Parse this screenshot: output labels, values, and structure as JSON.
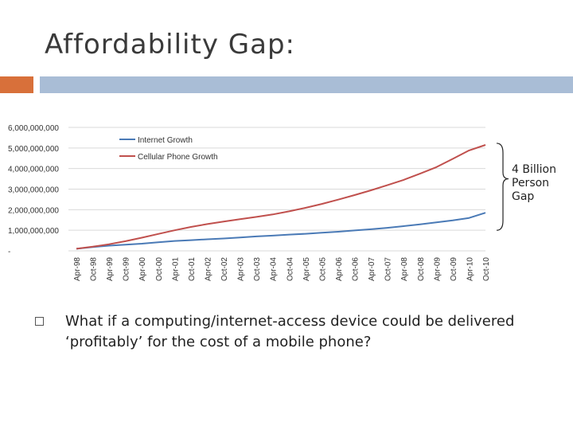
{
  "slide": {
    "title": "Affordability Gap:",
    "gap_label_lines": [
      "4 Billion",
      "Person",
      "Gap"
    ],
    "question": "What if a computing/internet-access device could be delivered ‘profitably’ for the cost of a mobile phone?",
    "colors": {
      "accent_left": "#d8703a",
      "accent_right": "#a9bdd6",
      "internet_line": "#4a7ab6",
      "cellular_line": "#c0504d"
    }
  },
  "chart_data": {
    "type": "line",
    "title": "",
    "xlabel": "",
    "ylabel": "",
    "ylim": [
      0,
      6000000000
    ],
    "y_ticks": [
      "6,000,000,000",
      "5,000,000,000",
      "4,000,000,000",
      "3,000,000,000",
      "2,000,000,000",
      "1,000,000,000",
      "-"
    ],
    "y_tick_values": [
      6000000000,
      5000000000,
      4000000000,
      3000000000,
      2000000000,
      1000000000,
      0
    ],
    "x": [
      "Apr-98",
      "Oct-98",
      "Apr-99",
      "Oct-99",
      "Apr-00",
      "Oct-00",
      "Apr-01",
      "Oct-01",
      "Apr-02",
      "Oct-02",
      "Apr-03",
      "Oct-03",
      "Apr-04",
      "Oct-04",
      "Apr-05",
      "Oct-05",
      "Apr-06",
      "Oct-06",
      "Apr-07",
      "Oct-07",
      "Apr-08",
      "Oct-08",
      "Apr-09",
      "Oct-09",
      "Apr-10",
      "Oct-10"
    ],
    "grid": "horizontal",
    "legend_position": "top-left",
    "series": [
      {
        "name": "Internet Growth",
        "values": [
          100000000,
          180000000,
          250000000,
          300000000,
          350000000,
          420000000,
          480000000,
          520000000,
          560000000,
          600000000,
          650000000,
          700000000,
          740000000,
          790000000,
          830000000,
          880000000,
          930000000,
          990000000,
          1050000000,
          1120000000,
          1200000000,
          1290000000,
          1380000000,
          1480000000,
          1600000000,
          1850000000
        ]
      },
      {
        "name": "Cellular Phone Growth",
        "values": [
          100000000,
          200000000,
          320000000,
          470000000,
          640000000,
          820000000,
          1000000000,
          1160000000,
          1300000000,
          1420000000,
          1540000000,
          1650000000,
          1770000000,
          1920000000,
          2090000000,
          2280000000,
          2490000000,
          2710000000,
          2940000000,
          3190000000,
          3450000000,
          3750000000,
          4070000000,
          4470000000,
          4880000000,
          5150000000
        ]
      }
    ]
  }
}
